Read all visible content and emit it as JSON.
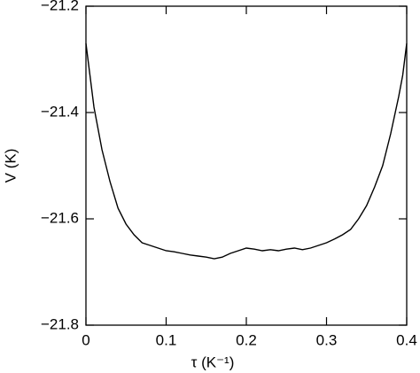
{
  "chart_data": {
    "type": "line",
    "xlabel": "τ  (K⁻¹)",
    "ylabel": "V  (K)",
    "x": [
      0,
      0.005,
      0.01,
      0.02,
      0.03,
      0.04,
      0.05,
      0.06,
      0.07,
      0.08,
      0.09,
      0.1,
      0.11,
      0.12,
      0.13,
      0.14,
      0.15,
      0.16,
      0.17,
      0.18,
      0.19,
      0.2,
      0.21,
      0.22,
      0.23,
      0.24,
      0.25,
      0.26,
      0.27,
      0.28,
      0.29,
      0.3,
      0.31,
      0.32,
      0.33,
      0.34,
      0.35,
      0.36,
      0.37,
      0.38,
      0.39,
      0.395,
      0.4
    ],
    "values": [
      -21.27,
      -21.33,
      -21.39,
      -21.47,
      -21.53,
      -21.58,
      -21.61,
      -21.63,
      -21.645,
      -21.65,
      -21.655,
      -21.66,
      -21.662,
      -21.665,
      -21.668,
      -21.67,
      -21.672,
      -21.675,
      -21.672,
      -21.665,
      -21.66,
      -21.655,
      -21.657,
      -21.66,
      -21.658,
      -21.66,
      -21.657,
      -21.655,
      -21.658,
      -21.655,
      -21.65,
      -21.645,
      -21.638,
      -21.63,
      -21.62,
      -21.6,
      -21.575,
      -21.54,
      -21.5,
      -21.44,
      -21.37,
      -21.33,
      -21.27
    ],
    "color": "#000000",
    "xlim": [
      0,
      0.4
    ],
    "xticks": [
      0,
      0.1,
      0.2,
      0.3,
      0.4
    ],
    "ylim": [
      -21.8,
      -21.2
    ],
    "yticks": [
      {
        "value": -21.8,
        "label": "−21.8"
      },
      {
        "value": -21.6,
        "label": "−21.6"
      },
      {
        "value": -21.4,
        "label": "−21.4"
      },
      {
        "value": -21.2,
        "label": "−21.2"
      }
    ]
  }
}
